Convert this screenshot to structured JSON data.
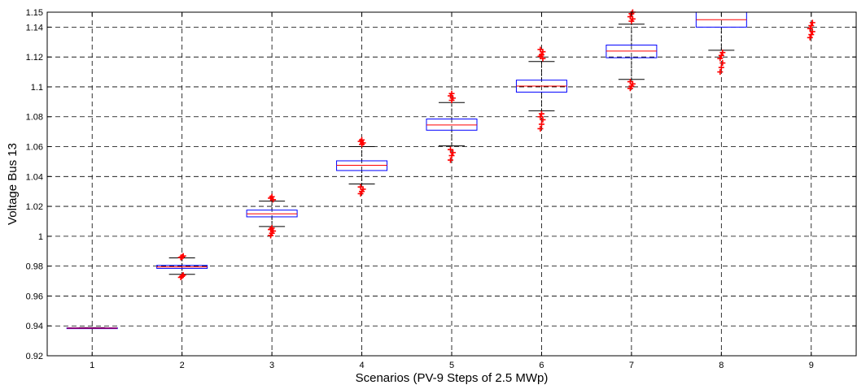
{
  "chart_data": {
    "type": "boxplot",
    "title": "",
    "xlabel": "Scenarios (PV-9 Steps of 2.5 MWp)",
    "ylabel": "Voltage Bus 13",
    "ylim": [
      0.92,
      1.15
    ],
    "yticks": [
      0.92,
      0.94,
      0.96,
      0.98,
      1,
      1.02,
      1.04,
      1.06,
      1.08,
      1.1,
      1.12,
      1.14,
      1.15
    ],
    "ytick_labels": [
      "0.92",
      "0.94",
      "0.96",
      "0.98",
      "1",
      "1.02",
      "1.04",
      "1.06",
      "1.08",
      "1.1",
      "1.12",
      "1.14",
      "1.15"
    ],
    "categories": [
      "1",
      "2",
      "3",
      "4",
      "5",
      "6",
      "7",
      "8",
      "9"
    ],
    "grid": true,
    "colors": {
      "box": "#0000ff",
      "median": "#ff0000",
      "whisker": "#000000",
      "outlier": "#ff0000",
      "grid": "#000000"
    },
    "boxes": [
      {
        "q1": 0.9383,
        "median": 0.9385,
        "q3": 0.9387,
        "whisker_low": 0.9382,
        "whisker_high": 0.9388,
        "outliers": []
      },
      {
        "q1": 0.9785,
        "median": 0.9795,
        "q3": 0.9805,
        "whisker_low": 0.9745,
        "whisker_high": 0.9855,
        "outliers": [
          0.9725,
          0.9732,
          0.974,
          0.9858,
          0.9862,
          0.9868
        ]
      },
      {
        "q1": 1.013,
        "median": 1.015,
        "q3": 1.0175,
        "whisker_low": 1.0065,
        "whisker_high": 1.0235,
        "outliers": [
          1.0005,
          1.002,
          1.0035,
          1.0045,
          1.0055,
          1.0245,
          1.0255,
          1.0265
        ]
      },
      {
        "q1": 1.044,
        "median": 1.0475,
        "q3": 1.0505,
        "whisker_low": 1.035,
        "whisker_high": 1.06,
        "outliers": [
          1.0285,
          1.03,
          1.0315,
          1.033,
          1.0615,
          1.0625,
          1.0635,
          1.0645
        ]
      },
      {
        "q1": 1.071,
        "median": 1.0745,
        "q3": 1.0785,
        "whisker_low": 1.0605,
        "whisker_high": 1.0895,
        "outliers": [
          1.051,
          1.054,
          1.056,
          1.058,
          1.091,
          1.0925,
          1.094,
          1.0955
        ]
      },
      {
        "q1": 1.0965,
        "median": 1.1005,
        "q3": 1.1045,
        "whisker_low": 1.084,
        "whisker_high": 1.117,
        "outliers": [
          1.072,
          1.075,
          1.078,
          1.08,
          1.082,
          1.119,
          1.1205,
          1.1215,
          1.1235,
          1.125
        ]
      },
      {
        "q1": 1.1195,
        "median": 1.124,
        "q3": 1.128,
        "whisker_low": 1.105,
        "whisker_high": 1.142,
        "outliers": [
          1.099,
          1.1005,
          1.102,
          1.1035,
          1.144,
          1.1455,
          1.147,
          1.149,
          1.15
        ]
      },
      {
        "q1": 1.14,
        "median": 1.145,
        "q3": 1.15,
        "whisker_low": 1.1245,
        "whisker_high": 1.15,
        "outliers": [
          1.11,
          1.113,
          1.116,
          1.119,
          1.121,
          1.123
        ]
      },
      {
        "q1": null,
        "median": null,
        "q3": null,
        "whisker_low": null,
        "whisker_high": null,
        "outliers": [
          1.133,
          1.135,
          1.137,
          1.139,
          1.141,
          1.143
        ]
      }
    ]
  }
}
